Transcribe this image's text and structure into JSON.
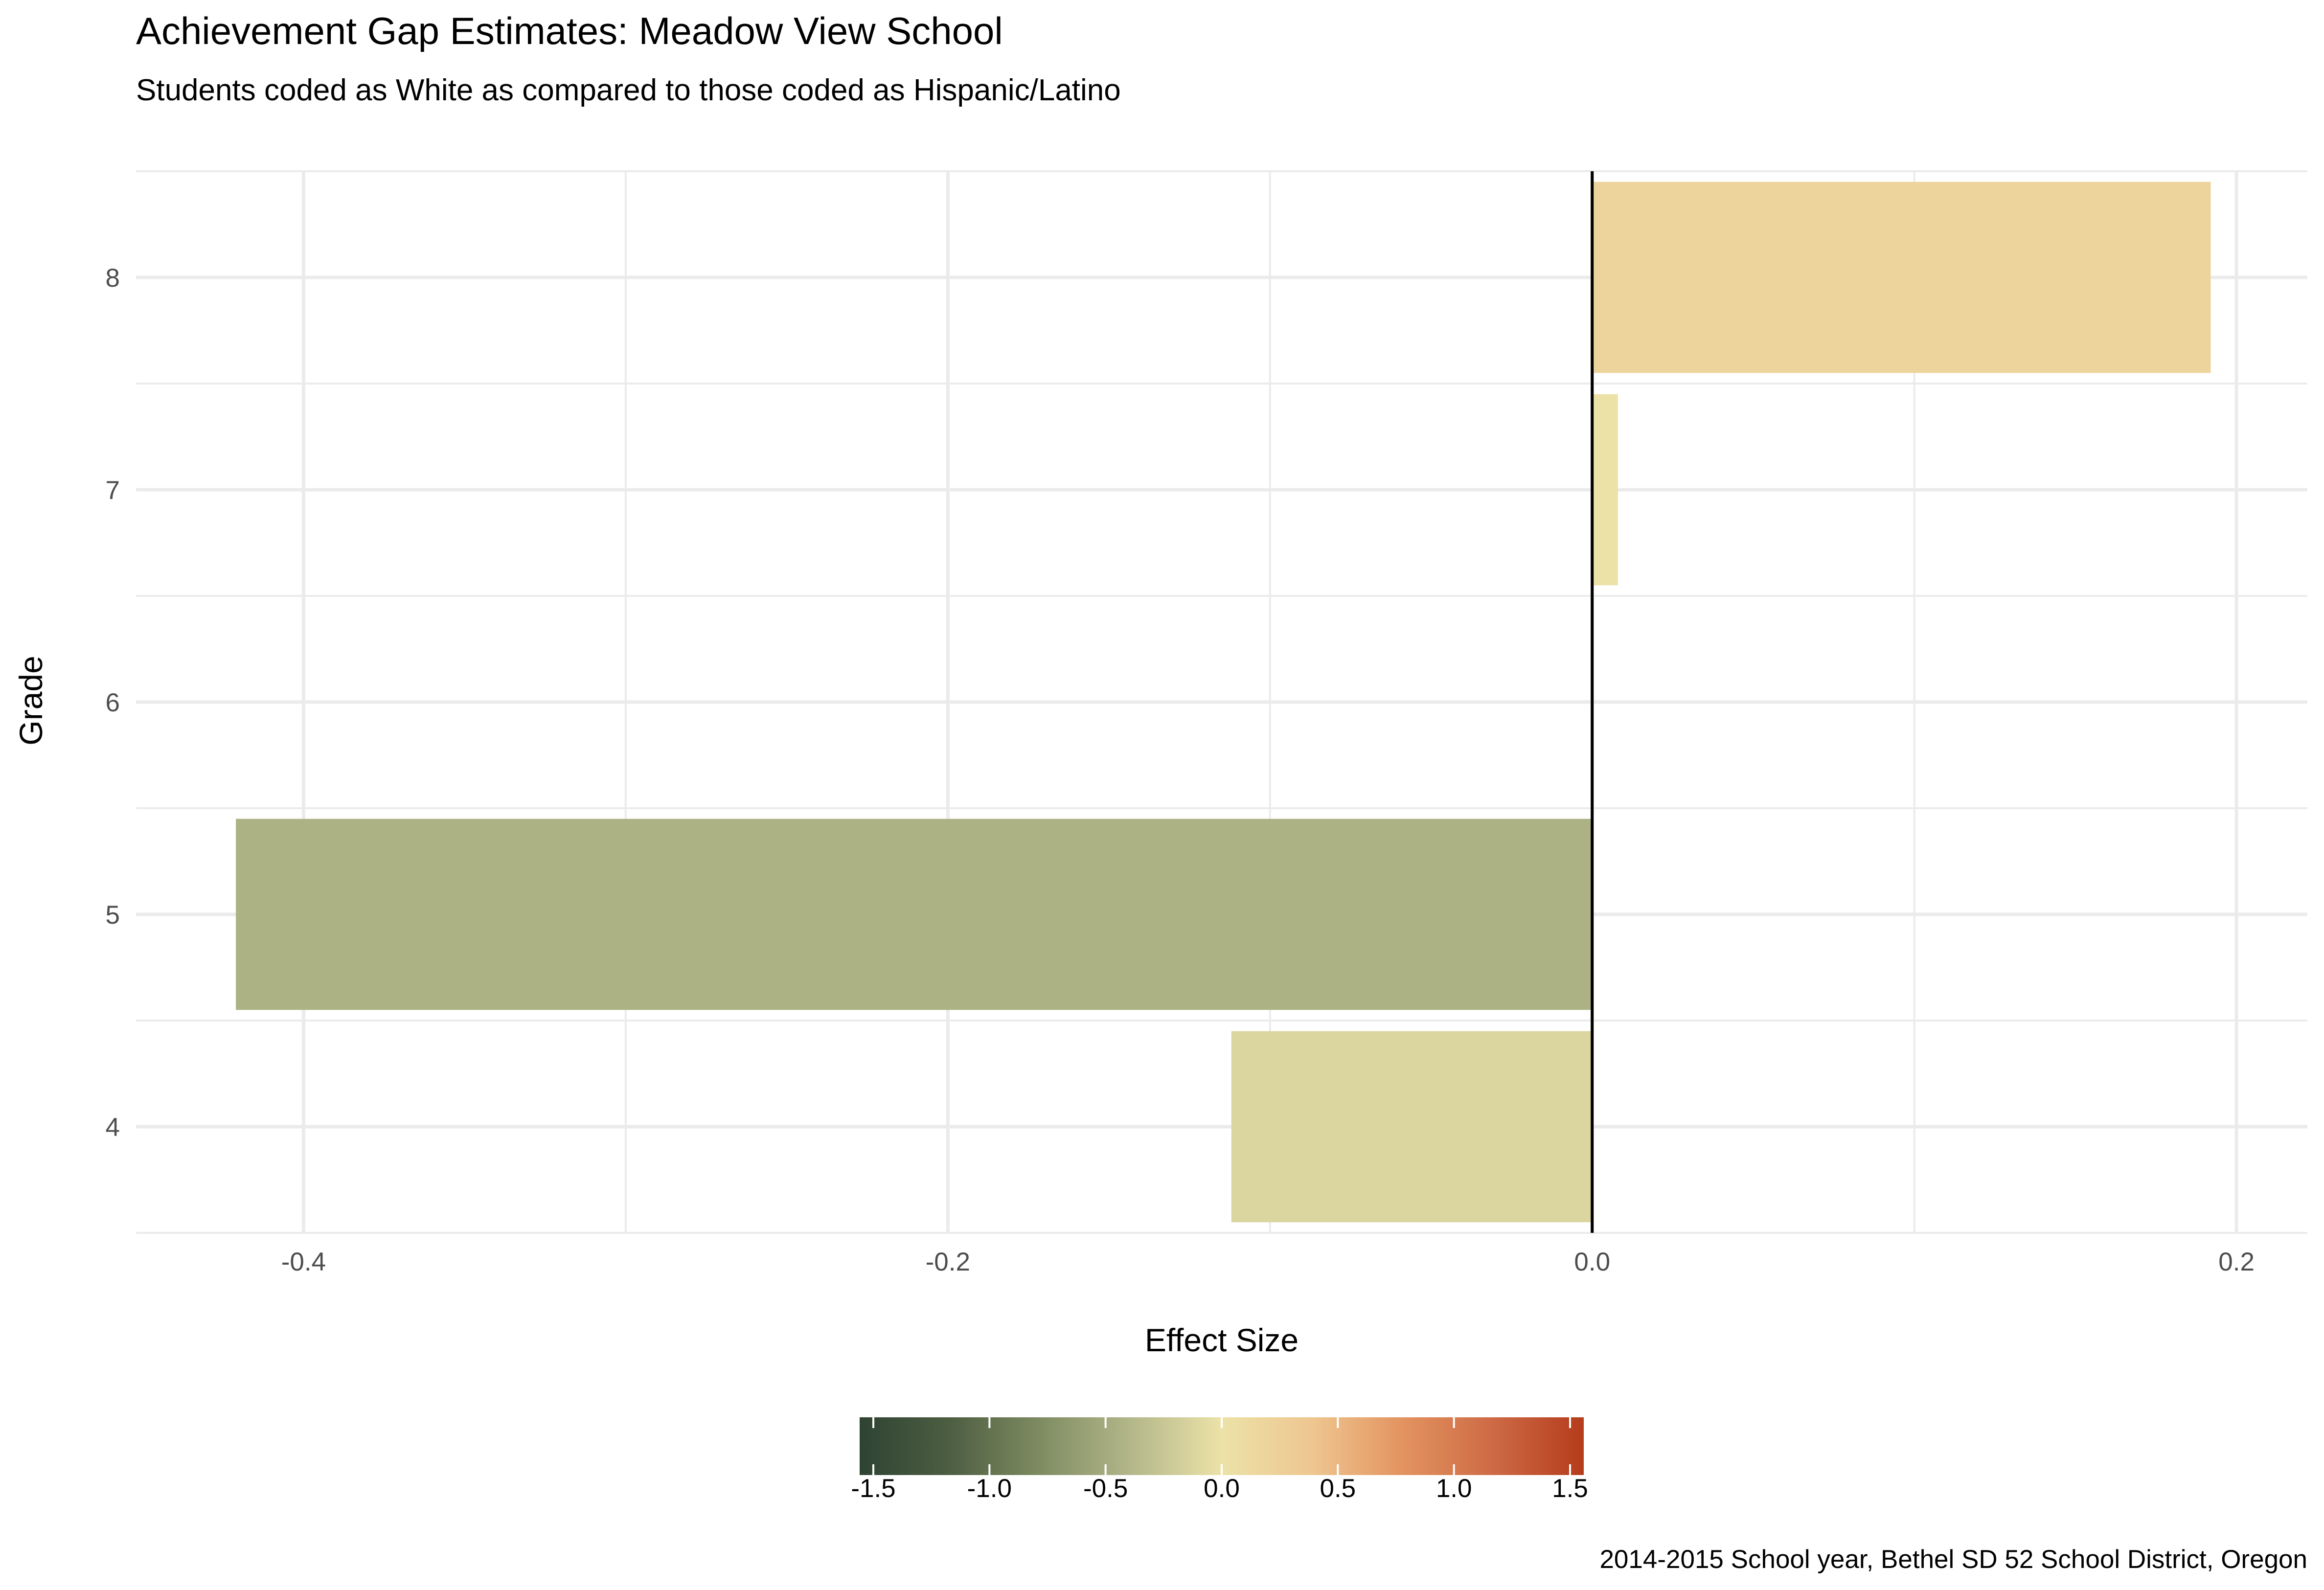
{
  "chart_data": {
    "type": "bar",
    "orientation": "horizontal",
    "title": "Achievement Gap Estimates: Meadow View School",
    "subtitle": "Students coded as White as compared to those coded as Hispanic/Latino",
    "xlabel": "Effect Size",
    "ylabel": "Grade",
    "caption": "2014-2015 School year, Bethel SD 52 School District, Oregon",
    "categories": [
      "4",
      "5",
      "6",
      "7",
      "8"
    ],
    "values": [
      -0.112,
      -0.421,
      null,
      0.008,
      0.192
    ],
    "xlim": [
      -0.452,
      0.222
    ],
    "x_ticks": [
      -0.4,
      -0.2,
      0.0,
      0.2
    ],
    "x_tick_labels": [
      "-0.4",
      "-0.2",
      "0.0",
      "0.2"
    ],
    "reference_line": 0.0,
    "grid": true,
    "legend": {
      "position": "bottom",
      "type": "colorbar",
      "range": [
        -1.5,
        1.5
      ],
      "ticks": [
        -1.5,
        -1.0,
        -0.5,
        0.0,
        0.5,
        1.0,
        1.5
      ],
      "tick_labels": [
        "-1.5",
        "-1.0",
        "-0.5",
        "0.0",
        "0.5",
        "1.0",
        "1.5"
      ],
      "colors": [
        "#2e4332",
        "#4d5e42",
        "#7f8c62",
        "#b3b78a",
        "#ece2a8",
        "#eec690",
        "#e3935f",
        "#cd6a45",
        "#b53c1c"
      ]
    },
    "colors": {
      "axis_line": "#000000",
      "grid": "#ebebeb",
      "tick_text": "#4d4d4d"
    }
  }
}
